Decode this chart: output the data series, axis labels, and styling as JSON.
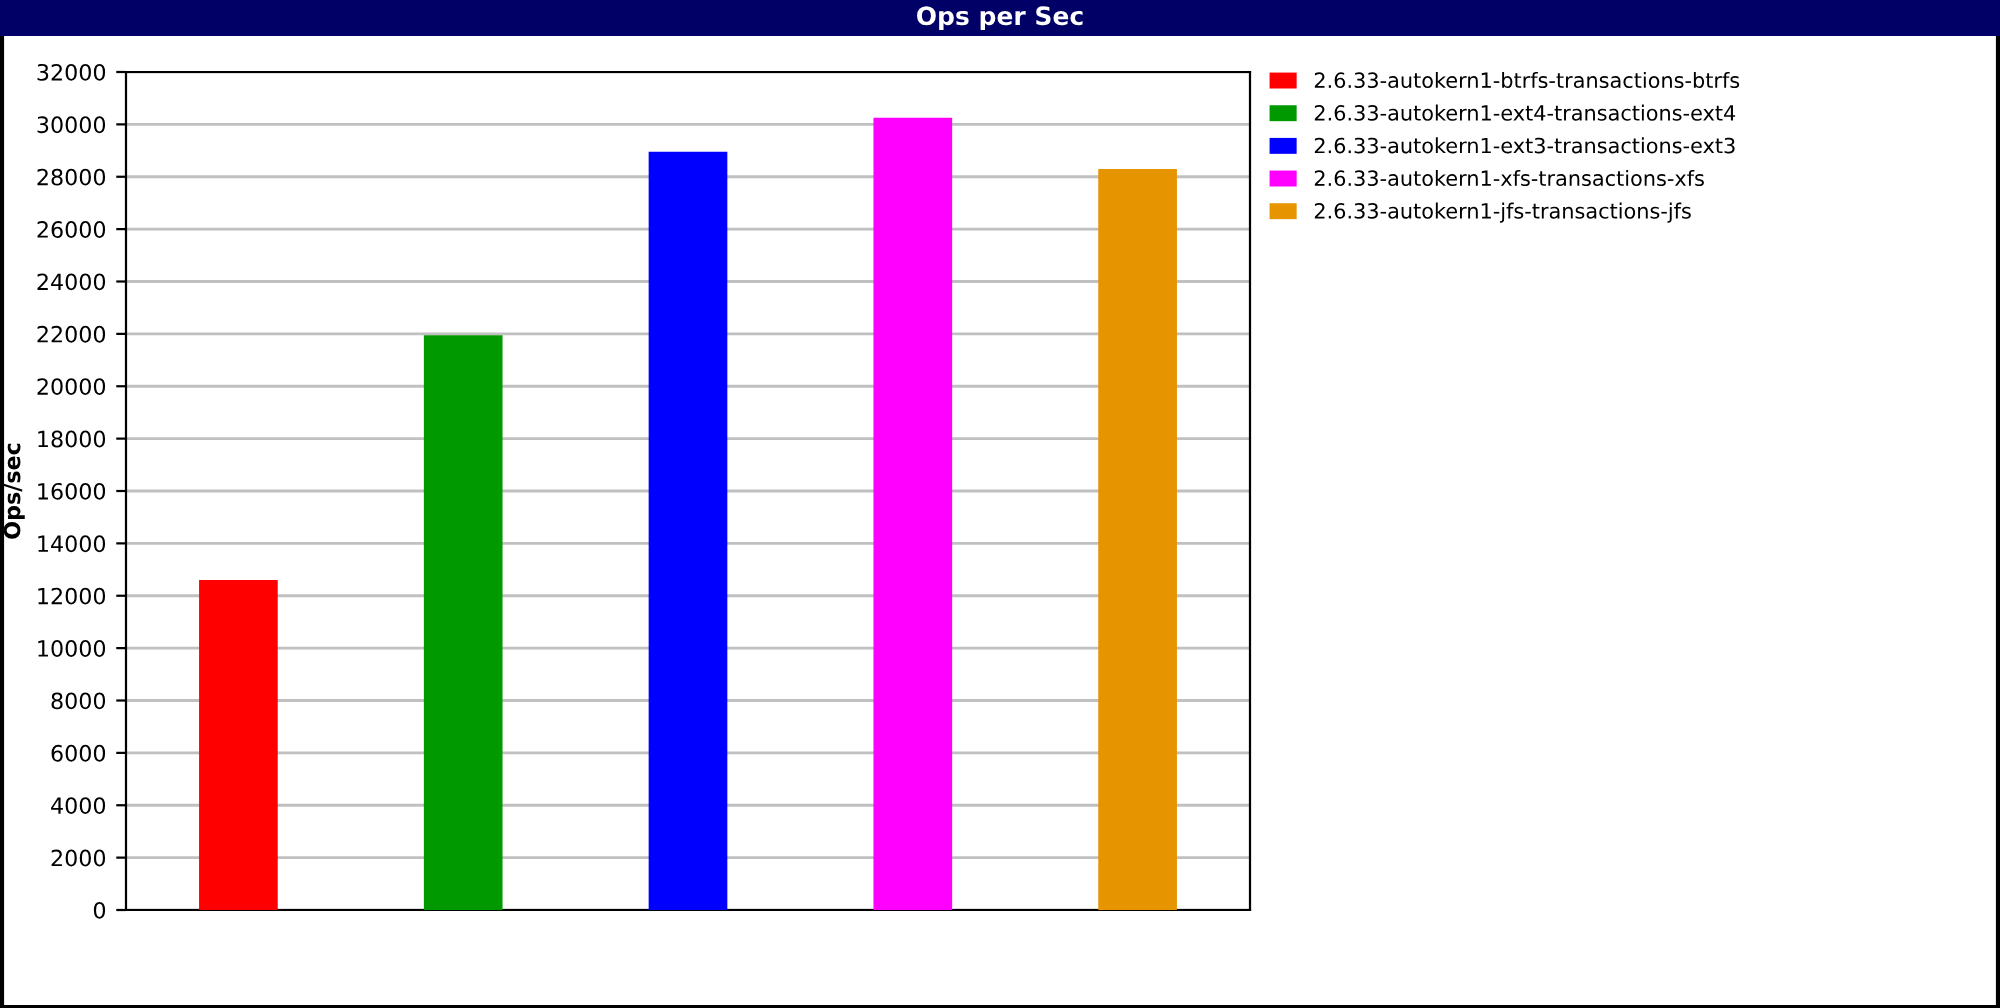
{
  "chart_data": {
    "type": "bar",
    "title": "Ops per Sec",
    "ylabel": "Ops/sec",
    "categories": [
      null,
      null,
      null,
      null,
      null
    ],
    "series": [
      {
        "name": "2.6.33-autokern1-btrfs-transactions-btrfs",
        "color": "#ff0000",
        "values": [
          12600,
          null,
          null,
          null,
          null
        ]
      },
      {
        "name": "2.6.33-autokern1-ext4-transactions-ext4",
        "color": "#009900",
        "values": [
          null,
          21950,
          null,
          null,
          null
        ]
      },
      {
        "name": "2.6.33-autokern1-ext3-transactions-ext3",
        "color": "#0000ff",
        "values": [
          null,
          null,
          28950,
          null,
          null
        ]
      },
      {
        "name": "2.6.33-autokern1-xfs-transactions-xfs",
        "color": "#ff00ff",
        "values": [
          null,
          null,
          null,
          30250,
          null
        ]
      },
      {
        "name": "2.6.33-autokern1-jfs-transactions-jfs",
        "color": "#e69500",
        "values": [
          null,
          null,
          null,
          null,
          28300
        ]
      }
    ],
    "ylim": [
      0,
      32000
    ],
    "yticks": [
      0,
      2000,
      4000,
      6000,
      8000,
      10000,
      12000,
      14000,
      16000,
      18000,
      20000,
      22000,
      24000,
      26000,
      28000,
      30000,
      32000
    ],
    "grid": "y",
    "legend": "top right"
  }
}
